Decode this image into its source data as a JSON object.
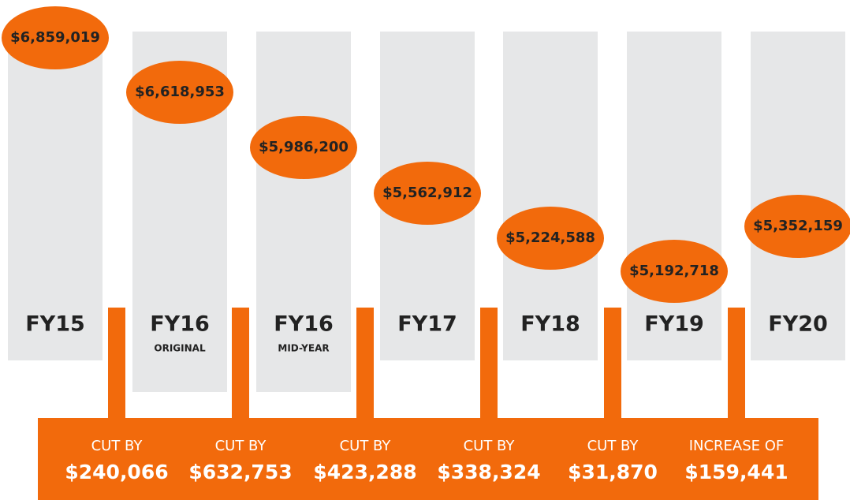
{
  "columns": [
    {
      "label": "FY15",
      "amount": "$6,859,019"
    },
    {
      "label": "FY16",
      "sublabel": "ORIGINAL",
      "amount": "$6,618,953"
    },
    {
      "label": "FY16",
      "sublabel": "MID-YEAR",
      "amount": "$5,986,200"
    },
    {
      "label": "FY17",
      "amount": "$5,562,912"
    },
    {
      "label": "FY18",
      "amount": "$5,224,588"
    },
    {
      "label": "FY19",
      "amount": "$5,192,718"
    },
    {
      "label": "FY20",
      "amount": "$5,352,159"
    }
  ],
  "changes": [
    {
      "label": "CUT BY",
      "amount": "$240,066"
    },
    {
      "label": "CUT BY",
      "amount": "$632,753"
    },
    {
      "label": "CUT BY",
      "amount": "$423,288"
    },
    {
      "label": "CUT BY",
      "amount": "$338,324"
    },
    {
      "label": "CUT BY",
      "amount": "$31,870"
    },
    {
      "label": "INCREASE OF",
      "amount": "$159,441"
    }
  ]
}
